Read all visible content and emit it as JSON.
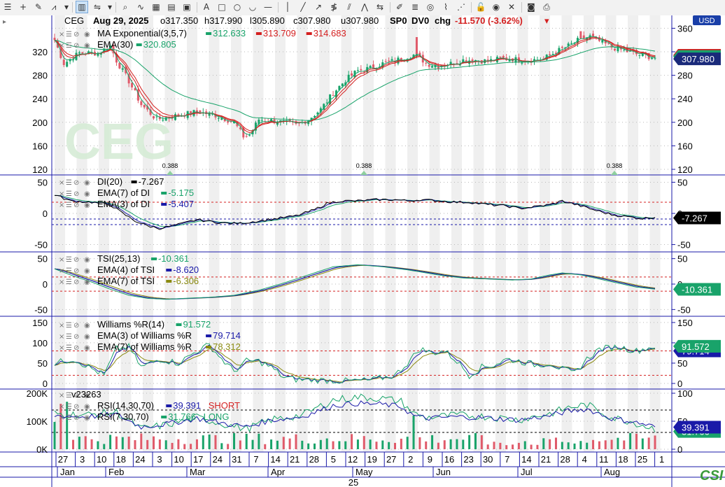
{
  "toolbar": {
    "groups": [
      [
        "menu-icon",
        "crosshair-icon",
        "pen-icon",
        "chart-style-icon",
        "chevron-down-icon"
      ],
      [
        "bar-chart-icon",
        "compare-icon",
        "chevron-down-icon"
      ],
      [
        "zoom-icon",
        "wave-icon",
        "grid-icon",
        "table-icon",
        "image-icon"
      ],
      [
        "text-icon",
        "rectangle-icon",
        "ellipse-icon",
        "arc-icon",
        "hline-icon"
      ],
      [
        "vline-icon",
        "trendline-icon",
        "ray-icon",
        "fib-icon",
        "channel-icon",
        "zigzag-icon",
        "arrows-icon"
      ],
      [
        "pencil-icon",
        "bars-icon",
        "target-icon",
        "brush-icon",
        "fan-icon"
      ],
      [
        "lock-icon",
        "eye-icon",
        "delete-icon"
      ],
      [
        "camera-icon",
        "print-icon"
      ]
    ]
  },
  "header": {
    "symbol": "CEG",
    "date": "Aug 29, 2025",
    "open": "o317.350",
    "high": "h317.990",
    "low": "l305.890",
    "close": "c307.980",
    "u": "u307.980",
    "sp": "SP0",
    "dv": "DV0",
    "chg_label": "chg",
    "chg": "-11.570 (-3.62%)",
    "currency": "USD",
    "watermark": "CEG"
  },
  "price_panel": {
    "studies": [
      {
        "name": "MA Exponential(3,5,7)",
        "values": [
          "312.633",
          "313.709",
          "314.683"
        ],
        "colors": [
          "#19a36a",
          "#d42020",
          "#d42020"
        ]
      },
      {
        "name": "EMA(30)",
        "values": [
          "320.805"
        ],
        "colors": [
          "#19a36a"
        ]
      }
    ],
    "axis_ticks": [
      "360",
      "320",
      "280",
      "240",
      "200",
      "160",
      "120"
    ],
    "left_ticks": [
      "320",
      "280",
      "240",
      "200",
      "160",
      "120"
    ],
    "last_price": "307.980",
    "div_labels": [
      "0.388",
      "0.388",
      "0.388"
    ]
  },
  "di_panel": {
    "studies": [
      {
        "name": "DI(20)",
        "value": "-7.267",
        "color": "#000000"
      },
      {
        "name": "EMA(7) of DI",
        "value": "-5.175",
        "color": "#19a36a"
      },
      {
        "name": "EMA(3) of DI",
        "value": "-5.407",
        "color": "#1a1aa8"
      }
    ],
    "ticks": [
      "50",
      "0",
      "-50"
    ],
    "tag": "-7.267"
  },
  "tsi_panel": {
    "studies": [
      {
        "name": "TSI(25,13)",
        "value": "-10.361",
        "color": "#19a36a"
      },
      {
        "name": "EMA(4) of TSI",
        "value": "-8.620",
        "color": "#1a1aa8"
      },
      {
        "name": "EMA(7) of TSI",
        "value": "-6.306",
        "color": "#8a8a10"
      }
    ],
    "ticks": [
      "50",
      "0",
      "-50"
    ],
    "tag": "-10.361"
  },
  "wr_panel": {
    "studies": [
      {
        "name": "Williams %R(14)",
        "value": "91.572",
        "color": "#19a36a"
      },
      {
        "name": "EMA(3) of Williams %R",
        "value": "79.714",
        "color": "#1a1aa8"
      },
      {
        "name": "EMA(7) of Williams %R",
        "value": "78.312",
        "color": "#8a8a10"
      }
    ],
    "ticks": [
      "150",
      "100",
      "50",
      "0"
    ],
    "tag1": "91.572",
    "tag2": "79.714"
  },
  "vol_panel": {
    "volume_label": "v23263",
    "studies": [
      {
        "name": "RSI(14,30,70)",
        "value": "39.391",
        "signal": "SHORT",
        "color": "#1a1aa8",
        "signal_color": "#d42020"
      },
      {
        "name": "RSI(7,30,70)",
        "value": "31.766",
        "signal": "LONG",
        "color": "#19a36a",
        "signal_color": "#19a36a"
      }
    ],
    "left_ticks": [
      "200K",
      "100K",
      "0K"
    ],
    "right_ticks": [
      "100",
      "50",
      "0"
    ],
    "tag1": "39.391",
    "tag2": "31.766"
  },
  "x_axis": {
    "days": [
      "27",
      "3",
      "10",
      "18",
      "24",
      "3",
      "10",
      "17",
      "24",
      "31",
      "7",
      "14",
      "21",
      "28",
      "5",
      "12",
      "19",
      "27",
      "2",
      "9",
      "16",
      "23",
      "30",
      "7",
      "14",
      "21",
      "28",
      "4",
      "11",
      "18",
      "25",
      "1"
    ],
    "months": [
      "Jan",
      "Feb",
      "Mar",
      "Apr",
      "May",
      "Jun",
      "Jul",
      "Aug"
    ],
    "year": "25"
  },
  "logo": "CSI",
  "colors": {
    "up": "#19a36a",
    "down": "#e05a6a",
    "ema_red": "#d42020",
    "ema_green": "#19a36a",
    "blue": "#1a1aa8",
    "olive": "#8a8a10",
    "ref_red": "#d42020",
    "ref_blue": "#1a1aa8",
    "band": "#efefef"
  },
  "chart_data": {
    "type": "line",
    "x_range": [
      "2025-01-24",
      "2025-08-29"
    ],
    "price": {
      "ylim": [
        120,
        370
      ],
      "close_path": [
        [
          0,
          340
        ],
        [
          3,
          300
        ],
        [
          8,
          318
        ],
        [
          14,
          318
        ],
        [
          18,
          330
        ],
        [
          20,
          305
        ],
        [
          24,
          270
        ],
        [
          28,
          230
        ],
        [
          33,
          205
        ],
        [
          40,
          212
        ],
        [
          46,
          218
        ],
        [
          52,
          212
        ],
        [
          58,
          200
        ],
        [
          61,
          176
        ],
        [
          63,
          178
        ],
        [
          66,
          205
        ],
        [
          72,
          202
        ],
        [
          78,
          195
        ],
        [
          82,
          205
        ],
        [
          86,
          222
        ],
        [
          90,
          250
        ],
        [
          94,
          272
        ],
        [
          98,
          288
        ],
        [
          102,
          292
        ],
        [
          106,
          300
        ],
        [
          110,
          305
        ],
        [
          114,
          312
        ],
        [
          117,
          316
        ],
        [
          120,
          300
        ],
        [
          124,
          296
        ],
        [
          128,
          300
        ],
        [
          132,
          306
        ],
        [
          136,
          306
        ],
        [
          140,
          304
        ],
        [
          144,
          308
        ],
        [
          148,
          308
        ],
        [
          150,
          306
        ],
        [
          154,
          306
        ],
        [
          158,
          308
        ],
        [
          162,
          320
        ],
        [
          166,
          330
        ],
        [
          170,
          342
        ],
        [
          173,
          346
        ],
        [
          176,
          338
        ],
        [
          180,
          328
        ],
        [
          184,
          322
        ],
        [
          188,
          316
        ],
        [
          192,
          312
        ],
        [
          194,
          310
        ]
      ]
    },
    "di": {
      "ylim": [
        -55,
        55
      ],
      "path": [
        [
          0,
          30
        ],
        [
          5,
          20
        ],
        [
          12,
          18
        ],
        [
          18,
          14
        ],
        [
          22,
          0
        ],
        [
          26,
          -12
        ],
        [
          30,
          -20
        ],
        [
          34,
          -24
        ],
        [
          40,
          -18
        ],
        [
          46,
          -10
        ],
        [
          52,
          -14
        ],
        [
          56,
          -16
        ],
        [
          60,
          -16
        ],
        [
          66,
          -12
        ],
        [
          72,
          -8
        ],
        [
          78,
          -4
        ],
        [
          84,
          6
        ],
        [
          88,
          16
        ],
        [
          92,
          20
        ],
        [
          98,
          20
        ],
        [
          104,
          22
        ],
        [
          110,
          22
        ],
        [
          114,
          20
        ],
        [
          118,
          22
        ],
        [
          124,
          20
        ],
        [
          130,
          18
        ],
        [
          134,
          18
        ],
        [
          140,
          14
        ],
        [
          146,
          12
        ],
        [
          150,
          8
        ],
        [
          154,
          10
        ],
        [
          160,
          14
        ],
        [
          164,
          20
        ],
        [
          170,
          12
        ],
        [
          174,
          6
        ],
        [
          180,
          -2
        ],
        [
          186,
          -6
        ],
        [
          190,
          -8
        ],
        [
          194,
          -6
        ]
      ]
    },
    "tsi": {
      "ylim": [
        -55,
        55
      ],
      "path": [
        [
          0,
          30
        ],
        [
          6,
          16
        ],
        [
          12,
          4
        ],
        [
          18,
          -10
        ],
        [
          24,
          -22
        ],
        [
          30,
          -28
        ],
        [
          36,
          -30
        ],
        [
          42,
          -28
        ],
        [
          50,
          -26
        ],
        [
          58,
          -22
        ],
        [
          66,
          -12
        ],
        [
          74,
          2
        ],
        [
          82,
          18
        ],
        [
          90,
          34
        ],
        [
          98,
          38
        ],
        [
          106,
          34
        ],
        [
          114,
          28
        ],
        [
          120,
          22
        ],
        [
          126,
          16
        ],
        [
          132,
          12
        ],
        [
          140,
          10
        ],
        [
          148,
          8
        ],
        [
          154,
          10
        ],
        [
          160,
          18
        ],
        [
          164,
          22
        ],
        [
          170,
          18
        ],
        [
          176,
          10
        ],
        [
          182,
          2
        ],
        [
          188,
          -6
        ],
        [
          194,
          -10
        ]
      ]
    },
    "williams": {
      "ylim": [
        0,
        155
      ],
      "path": [
        [
          0,
          50
        ],
        [
          6,
          60
        ],
        [
          10,
          45
        ],
        [
          16,
          20
        ],
        [
          20,
          85
        ],
        [
          24,
          90
        ],
        [
          28,
          40
        ],
        [
          34,
          60
        ],
        [
          40,
          50
        ],
        [
          46,
          80
        ],
        [
          50,
          95
        ],
        [
          54,
          60
        ],
        [
          58,
          30
        ],
        [
          62,
          55
        ],
        [
          66,
          55
        ],
        [
          70,
          40
        ],
        [
          74,
          15
        ],
        [
          78,
          10
        ],
        [
          86,
          8
        ],
        [
          94,
          6
        ],
        [
          102,
          8
        ],
        [
          110,
          20
        ],
        [
          114,
          50
        ],
        [
          118,
          85
        ],
        [
          122,
          75
        ],
        [
          126,
          80
        ],
        [
          130,
          55
        ],
        [
          134,
          20
        ],
        [
          138,
          40
        ],
        [
          142,
          45
        ],
        [
          146,
          60
        ],
        [
          150,
          55
        ],
        [
          156,
          45
        ],
        [
          160,
          50
        ],
        [
          164,
          35
        ],
        [
          168,
          25
        ],
        [
          172,
          60
        ],
        [
          176,
          85
        ],
        [
          182,
          90
        ],
        [
          188,
          80
        ],
        [
          194,
          92
        ]
      ]
    },
    "volume": {
      "ylim": [
        0,
        200000
      ],
      "max": 200000
    },
    "rsi": {
      "ylim": [
        0,
        100
      ]
    }
  }
}
